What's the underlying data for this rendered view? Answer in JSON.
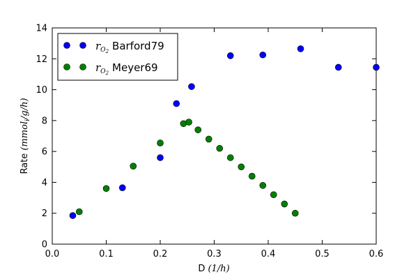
{
  "chart_data": {
    "type": "scatter",
    "xlabel": "D (1/h)",
    "ylabel": "Rate (mmol_i/g/h)",
    "xlim": [
      0.0,
      0.6
    ],
    "ylim": [
      0,
      14
    ],
    "x_ticks": [
      "0.0",
      "0.1",
      "0.2",
      "0.3",
      "0.4",
      "0.5",
      "0.6"
    ],
    "y_ticks": [
      "0",
      "2",
      "4",
      "6",
      "8",
      "10",
      "12",
      "14"
    ],
    "grid": false,
    "legend_position": "top-left",
    "series": [
      {
        "name": "r_O2 Barford79",
        "color": "#0000ff",
        "points": [
          [
            0.038,
            1.85
          ],
          [
            0.13,
            3.65
          ],
          [
            0.2,
            5.6
          ],
          [
            0.23,
            9.1
          ],
          [
            0.258,
            10.2
          ],
          [
            0.33,
            12.2
          ],
          [
            0.39,
            12.25
          ],
          [
            0.46,
            12.65
          ],
          [
            0.53,
            11.45
          ],
          [
            0.6,
            11.45
          ]
        ]
      },
      {
        "name": "r_O2 Meyer69",
        "color": "#008000",
        "points": [
          [
            0.05,
            2.1
          ],
          [
            0.1,
            3.6
          ],
          [
            0.15,
            5.05
          ],
          [
            0.2,
            6.55
          ],
          [
            0.243,
            7.8
          ],
          [
            0.253,
            7.9
          ],
          [
            0.27,
            7.4
          ],
          [
            0.29,
            6.8
          ],
          [
            0.31,
            6.2
          ],
          [
            0.33,
            5.6
          ],
          [
            0.35,
            5.0
          ],
          [
            0.37,
            4.4
          ],
          [
            0.39,
            3.8
          ],
          [
            0.41,
            3.2
          ],
          [
            0.43,
            2.6
          ],
          [
            0.45,
            2.0
          ]
        ]
      }
    ]
  },
  "axis_text": {
    "xlabel_plain": "D ",
    "xlabel_math": "(1/h)",
    "ylabel_plain": "Rate ",
    "ylabel_math": "(mmol",
    "ylabel_sub": "i",
    "ylabel_math_tail": "/g/h)"
  },
  "legend_text": [
    {
      "math": "r",
      "sub": "O",
      "subsub": "2",
      "label": "Barford79"
    },
    {
      "math": "r",
      "sub": "O",
      "subsub": "2",
      "label": "Meyer69"
    }
  ]
}
